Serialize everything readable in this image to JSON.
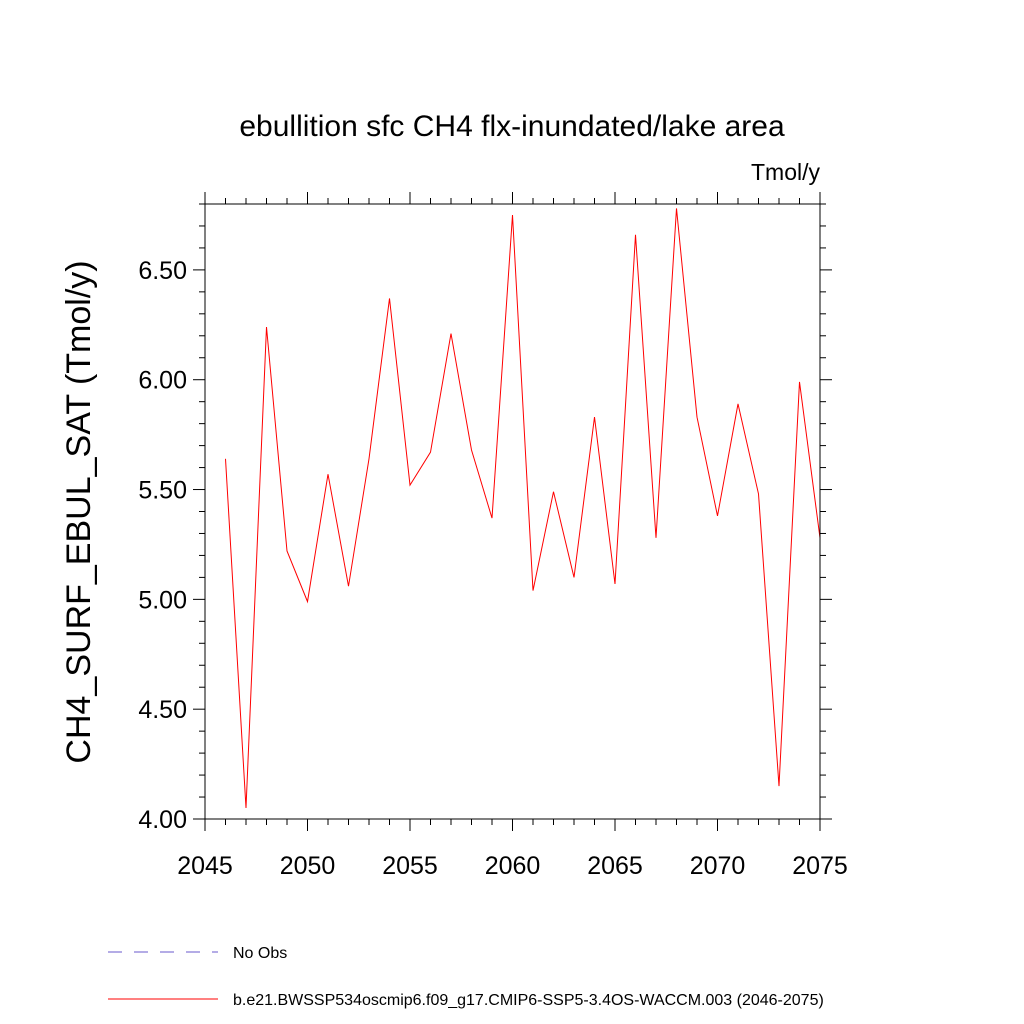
{
  "chart_data": {
    "type": "line",
    "title": "ebullition sfc CH4 flx-inundated/lake area",
    "units": "Tmol/y",
    "ylabel": "CH4_SURF_EBUL_SAT  (Tmol/y)",
    "xlabel": "",
    "xlim": [
      2045,
      2075
    ],
    "ylim": [
      4.0,
      6.8
    ],
    "x_ticks": [
      2045,
      2050,
      2055,
      2060,
      2065,
      2070,
      2075
    ],
    "x_tick_labels": [
      "2045",
      "2050",
      "2055",
      "2060",
      "2065",
      "2070",
      "2075"
    ],
    "y_ticks": [
      4.0,
      4.5,
      5.0,
      5.5,
      6.0,
      6.5
    ],
    "y_tick_labels": [
      "4.00",
      "4.50",
      "5.00",
      "5.50",
      "6.00",
      "6.50"
    ],
    "grid": false,
    "legend_position": "bottom",
    "series": [
      {
        "name": "b.e21.BWSSP534oscmip6.f09_g17.CMIP6-SSP5-3.4OS-WACCM.003 (2046-2075)",
        "color": "#ff0000",
        "style": "solid",
        "x": [
          2046,
          2047,
          2048,
          2049,
          2050,
          2051,
          2052,
          2053,
          2054,
          2055,
          2056,
          2057,
          2058,
          2059,
          2060,
          2061,
          2062,
          2063,
          2064,
          2065,
          2066,
          2067,
          2068,
          2069,
          2070,
          2071,
          2072,
          2073,
          2074,
          2075
        ],
        "values": [
          5.64,
          4.05,
          6.24,
          5.22,
          4.99,
          5.57,
          5.06,
          5.64,
          6.37,
          5.52,
          5.67,
          6.21,
          5.68,
          5.37,
          6.75,
          5.04,
          5.49,
          5.1,
          5.83,
          5.07,
          6.66,
          5.28,
          6.78,
          5.83,
          5.38,
          5.89,
          5.48,
          4.15,
          5.99,
          5.28
        ]
      }
    ],
    "legend": [
      {
        "label": "No Obs",
        "color": "#6a5acd",
        "style": "dashed"
      },
      {
        "label": "b.e21.BWSSP534oscmip6.f09_g17.CMIP6-SSP5-3.4OS-WACCM.003 (2046-2075)",
        "color": "#ff0000",
        "style": "solid"
      }
    ]
  }
}
